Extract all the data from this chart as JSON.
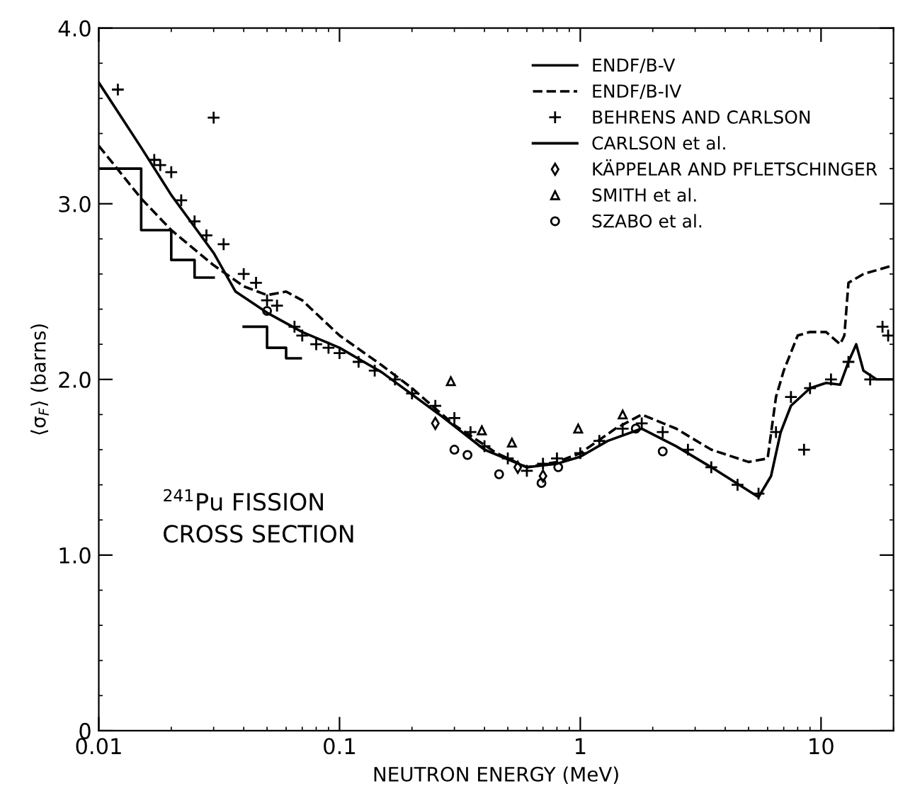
{
  "chart_data": {
    "type": "line",
    "xlabel": "NEUTRON ENERGY (MeV)",
    "ylabel": "⟨σ$_{F}$⟩ (barns)",
    "log": "x",
    "xlim": [
      0.01,
      20
    ],
    "xticks": [
      0.01,
      0.1,
      1,
      10
    ],
    "ylim": [
      0,
      4
    ],
    "yticks": [
      0,
      {
        "value": 1,
        "label": "1.0"
      },
      {
        "value": 2,
        "label": "2.0"
      },
      {
        "value": 3,
        "label": "3.0"
      },
      {
        "value": 4,
        "label": "4.0"
      }
    ],
    "grid": false,
    "legend": "top right",
    "annotations": [
      {
        "text": "$^{241}$Pu FISSION\nCROSS SECTION"
      }
    ],
    "series": [
      {
        "name": "ENDF/B-V",
        "color": "#000000",
        "line_style": "solid",
        "x": [
          0.01,
          0.015,
          0.02,
          0.03,
          0.037,
          0.05,
          0.07,
          0.1,
          0.15,
          0.26,
          0.4,
          0.6,
          0.8,
          1.0,
          1.3,
          1.8,
          2.5,
          3.5,
          5.5,
          6.2,
          6.8,
          7.5,
          9,
          10.5,
          12,
          13,
          14,
          15,
          17,
          20
        ],
        "values": [
          3.69,
          3.32,
          3.05,
          2.72,
          2.5,
          2.38,
          2.27,
          2.18,
          2.04,
          1.8,
          1.6,
          1.5,
          1.52,
          1.56,
          1.65,
          1.72,
          1.62,
          1.5,
          1.33,
          1.45,
          1.7,
          1.85,
          1.95,
          1.98,
          1.97,
          2.1,
          2.2,
          2.05,
          2.0,
          2.0
        ]
      },
      {
        "name": "ENDF/B-IV",
        "color": "#000000",
        "line_style": "dashed",
        "x": [
          0.01,
          0.015,
          0.02,
          0.03,
          0.04,
          0.05,
          0.06,
          0.07,
          0.1,
          0.15,
          0.2,
          0.3,
          0.45,
          0.6,
          0.8,
          1.0,
          1.4,
          1.8,
          2.5,
          3.5,
          5,
          6,
          6.5,
          7,
          8,
          9,
          10.5,
          12,
          12.5,
          13,
          15,
          20
        ],
        "values": [
          3.33,
          3.03,
          2.85,
          2.65,
          2.53,
          2.48,
          2.5,
          2.45,
          2.25,
          2.08,
          1.95,
          1.74,
          1.58,
          1.5,
          1.53,
          1.58,
          1.72,
          1.8,
          1.72,
          1.6,
          1.53,
          1.55,
          1.9,
          2.05,
          2.25,
          2.27,
          2.27,
          2.2,
          2.25,
          2.55,
          2.6,
          2.65
        ]
      },
      {
        "name": "BEHRENS AND CARLSON",
        "type": "scatter",
        "color": "#000000",
        "marker": "cross",
        "x": [
          0.012,
          0.017,
          0.018,
          0.02,
          0.022,
          0.025,
          0.028,
          0.03,
          0.033,
          0.04,
          0.045,
          0.05,
          0.055,
          0.065,
          0.07,
          0.08,
          0.09,
          0.1,
          0.12,
          0.14,
          0.17,
          0.2,
          0.25,
          0.3,
          0.35,
          0.4,
          0.5,
          0.6,
          0.7,
          0.8,
          1.0,
          1.2,
          1.5,
          1.8,
          2.2,
          2.8,
          3.5,
          4.5,
          5.5,
          6.5,
          7.5,
          8.5,
          9,
          11,
          13,
          16,
          18,
          19
        ],
        "values": [
          3.65,
          3.25,
          3.22,
          3.18,
          3.02,
          2.9,
          2.82,
          3.49,
          2.77,
          2.6,
          2.55,
          2.45,
          2.42,
          2.3,
          2.25,
          2.2,
          2.18,
          2.15,
          2.1,
          2.05,
          2.0,
          1.92,
          1.85,
          1.78,
          1.7,
          1.62,
          1.55,
          1.48,
          1.52,
          1.55,
          1.58,
          1.65,
          1.72,
          1.75,
          1.7,
          1.6,
          1.5,
          1.4,
          1.35,
          1.7,
          1.9,
          1.6,
          1.95,
          2.0,
          2.1,
          2.0,
          2.3,
          2.25
        ]
      },
      {
        "name": "CARLSON et al.",
        "type": "step",
        "color": "#000000",
        "line_style": "solid",
        "x": [
          0.01,
          0.015,
          0.02,
          0.025,
          0.03
        ],
        "values": [
          3.2,
          2.85,
          2.68,
          2.58,
          2.58
        ]
      },
      {
        "type": "step",
        "color": "#000000",
        "line_style": "solid",
        "x": [
          0.04,
          0.05,
          0.06,
          0.069
        ],
        "values": [
          2.3,
          2.18,
          2.12,
          2.12
        ]
      },
      {
        "name": "KÄPPELAR AND PFLETSCHINGER",
        "type": "scatter",
        "color": "#000000",
        "marker": "diamond",
        "x": [
          0.25,
          0.55,
          0.7
        ],
        "values": [
          1.75,
          1.5,
          1.45
        ]
      },
      {
        "name": "SMITH et al.",
        "type": "scatter",
        "color": "#000000",
        "marker": "triangle",
        "x": [
          0.29,
          0.39,
          0.52,
          0.98,
          1.5
        ],
        "values": [
          1.99,
          1.71,
          1.64,
          1.72,
          1.8
        ]
      },
      {
        "name": "SZABO et al.",
        "type": "scatter",
        "color": "#000000",
        "marker": "circle",
        "x": [
          0.05,
          0.3,
          0.34,
          0.46,
          0.69,
          0.81,
          1.7,
          2.2
        ],
        "values": [
          2.39,
          1.6,
          1.57,
          1.46,
          1.41,
          1.5,
          1.72,
          1.59
        ]
      }
    ]
  }
}
